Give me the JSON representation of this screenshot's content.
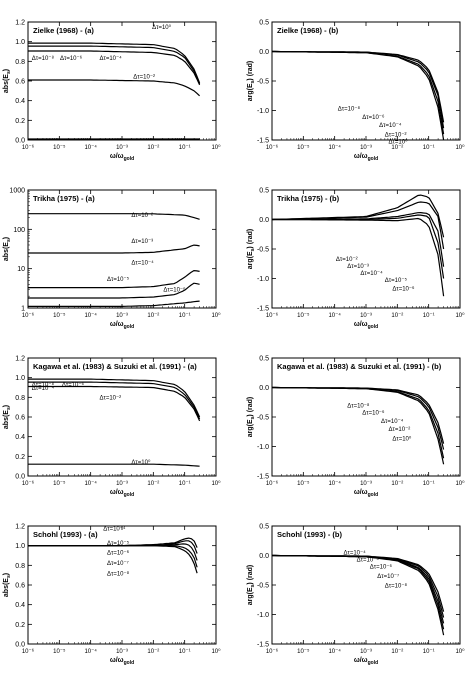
{
  "figure": {
    "xlabel": "ω/ω",
    "xlabel_sub": "gold",
    "ylabel_abs": "abs(E",
    "ylabel_abs_sub": "s",
    "ylabel_abs_close": ")",
    "ylabel_arg": "arg(E",
    "ylabel_arg_sub": "s",
    "ylabel_arg_close": ") (rad)"
  },
  "chart_data": [
    {
      "id": "zielke-a",
      "type": "line",
      "title": "Zielke (1968) - (a)",
      "xscale": "log",
      "xlim": [
        1e-06,
        1.0
      ],
      "ylim": [
        0.0,
        1.2
      ],
      "yticks": [
        0.0,
        0.2,
        0.4,
        0.6,
        0.8,
        1.0,
        1.2
      ],
      "series": [
        {
          "x": [
            1e-06,
            0.0001,
            0.01,
            0.05,
            0.1,
            0.2,
            0.3
          ],
          "y": [
            0.985,
            0.985,
            0.97,
            0.93,
            0.86,
            0.72,
            0.58
          ]
        },
        {
          "x": [
            1e-06,
            0.0001,
            0.01,
            0.05,
            0.1,
            0.2,
            0.3
          ],
          "y": [
            0.955,
            0.955,
            0.94,
            0.9,
            0.84,
            0.7,
            0.57
          ]
        },
        {
          "x": [
            1e-06,
            0.0001,
            0.01,
            0.05,
            0.1,
            0.2,
            0.3
          ],
          "y": [
            0.905,
            0.905,
            0.89,
            0.86,
            0.8,
            0.68,
            0.56
          ]
        },
        {
          "x": [
            1e-06,
            0.0001,
            0.01,
            0.05,
            0.1,
            0.2,
            0.3
          ],
          "y": [
            0.61,
            0.61,
            0.6,
            0.58,
            0.55,
            0.5,
            0.45
          ]
        },
        {
          "x": [
            1e-06,
            0.01,
            0.3
          ],
          "y": [
            0.01,
            0.01,
            0.01
          ]
        }
      ],
      "annotations": [
        "Δτ=10⁻⁸",
        "Δτ=10⁻⁶",
        "Δτ=10⁻⁴",
        "Δτ=10⁻²",
        "Δτ=10⁰"
      ]
    },
    {
      "id": "zielke-b",
      "type": "line",
      "title": "Zielke (1968) - (b)",
      "xscale": "log",
      "xlim": [
        1e-06,
        1.0
      ],
      "ylim": [
        -1.5,
        0.5
      ],
      "yticks": [
        -1.5,
        -1.0,
        -0.5,
        0.0,
        0.5
      ],
      "series": [
        {
          "x": [
            1e-06,
            0.001,
            0.01,
            0.05,
            0.1,
            0.2,
            0.3
          ],
          "y": [
            0,
            -0.01,
            -0.05,
            -0.15,
            -0.3,
            -0.7,
            -1.2
          ]
        },
        {
          "x": [
            1e-06,
            0.001,
            0.01,
            0.05,
            0.1,
            0.2,
            0.3
          ],
          "y": [
            0,
            -0.01,
            -0.06,
            -0.18,
            -0.34,
            -0.75,
            -1.3
          ]
        },
        {
          "x": [
            1e-06,
            0.001,
            0.01,
            0.05,
            0.1,
            0.2,
            0.3
          ],
          "y": [
            0,
            -0.02,
            -0.08,
            -0.22,
            -0.4,
            -0.85,
            -1.4
          ]
        },
        {
          "x": [
            1e-06,
            0.001,
            0.01,
            0.05,
            0.1,
            0.2,
            0.3
          ],
          "y": [
            0,
            -0.02,
            -0.09,
            -0.25,
            -0.45,
            -0.95,
            -1.5
          ]
        }
      ],
      "annotations": [
        "Δτ=10⁻⁸",
        "Δτ=10⁻⁶",
        "Δτ=10⁻⁴",
        "Δτ=10⁻²",
        "Δτ=10⁰"
      ]
    },
    {
      "id": "trikha-a",
      "type": "line",
      "title": "Trikha (1975) - (a)",
      "xscale": "log",
      "yscale": "log",
      "xlim": [
        1e-06,
        1.0
      ],
      "ylim": [
        1,
        1000
      ],
      "yticks": [
        1,
        10,
        100,
        1000
      ],
      "series": [
        {
          "x": [
            1e-06,
            0.001,
            0.01,
            0.1,
            0.3
          ],
          "y": [
            250,
            250,
            248,
            230,
            180
          ]
        },
        {
          "x": [
            1e-06,
            0.001,
            0.01,
            0.1,
            0.2,
            0.3
          ],
          "y": [
            25,
            25,
            26,
            32,
            40,
            38
          ]
        },
        {
          "x": [
            1e-06,
            0.001,
            0.01,
            0.05,
            0.1,
            0.2,
            0.3
          ],
          "y": [
            3.3,
            3.3,
            3.5,
            4.2,
            6,
            9,
            8.5
          ]
        },
        {
          "x": [
            1e-06,
            0.001,
            0.01,
            0.05,
            0.1,
            0.2,
            0.3
          ],
          "y": [
            1.8,
            1.8,
            1.9,
            2.2,
            2.8,
            4.3,
            4.0
          ]
        },
        {
          "x": [
            1e-06,
            0.001,
            0.01,
            0.1,
            0.3
          ],
          "y": [
            1.1,
            1.1,
            1.15,
            1.35,
            1.5
          ]
        }
      ],
      "annotations": [
        "Δτ=10⁻²",
        "Δτ=10⁻³",
        "Δτ=10⁻⁴",
        "Δτ=10⁻⁵",
        "Δτ=10⁻⁶"
      ]
    },
    {
      "id": "trikha-b",
      "type": "line",
      "title": "Trikha (1975) - (b)",
      "xscale": "log",
      "xlim": [
        1e-06,
        1.0
      ],
      "ylim": [
        -1.5,
        0.5
      ],
      "yticks": [
        -1.5,
        -1.0,
        -0.5,
        0.0,
        0.5
      ],
      "series": [
        {
          "x": [
            1e-06,
            0.001,
            0.01,
            0.03,
            0.05,
            0.1,
            0.2,
            0.3
          ],
          "y": [
            0,
            0.05,
            0.2,
            0.35,
            0.42,
            0.38,
            0.1,
            -0.3
          ]
        },
        {
          "x": [
            1e-06,
            0.001,
            0.01,
            0.03,
            0.05,
            0.1,
            0.2,
            0.3
          ],
          "y": [
            0,
            0.04,
            0.15,
            0.25,
            0.3,
            0.28,
            0.05,
            -0.5
          ]
        },
        {
          "x": [
            1e-06,
            0.001,
            0.01,
            0.05,
            0.1,
            0.2,
            0.3
          ],
          "y": [
            0,
            0.01,
            0.05,
            0.12,
            0.1,
            -0.2,
            -0.8
          ]
        },
        {
          "x": [
            1e-06,
            0.001,
            0.01,
            0.05,
            0.1,
            0.2,
            0.3
          ],
          "y": [
            0,
            0.0,
            0.02,
            0.08,
            0.05,
            -0.4,
            -1.0
          ]
        },
        {
          "x": [
            1e-06,
            0.001,
            0.01,
            0.05,
            0.1,
            0.2,
            0.3
          ],
          "y": [
            0,
            -0.01,
            -0.02,
            0.02,
            -0.1,
            -0.6,
            -1.3
          ]
        }
      ],
      "annotations": [
        "Δτ=10⁻²",
        "Δτ=10⁻³",
        "Δτ=10⁻⁴",
        "Δτ=10⁻⁵",
        "Δτ=10⁻⁶"
      ]
    },
    {
      "id": "kagawa-a",
      "type": "line",
      "title": "Kagawa et al. (1983) & Suzuki et al. (1991) - (a)",
      "xscale": "log",
      "xlim": [
        1e-06,
        1.0
      ],
      "ylim": [
        0.0,
        1.2
      ],
      "yticks": [
        0.0,
        0.2,
        0.4,
        0.6,
        0.8,
        1.0,
        1.2
      ],
      "series": [
        {
          "x": [
            1e-06,
            0.0001,
            0.01,
            0.05,
            0.1,
            0.2,
            0.3
          ],
          "y": [
            0.985,
            0.985,
            0.97,
            0.93,
            0.86,
            0.72,
            0.6
          ]
        },
        {
          "x": [
            1e-06,
            0.0001,
            0.01,
            0.05,
            0.1,
            0.2,
            0.3
          ],
          "y": [
            0.955,
            0.955,
            0.94,
            0.9,
            0.83,
            0.7,
            0.58
          ]
        },
        {
          "x": [
            1e-06,
            0.0001,
            0.01,
            0.05,
            0.1,
            0.2,
            0.3
          ],
          "y": [
            0.91,
            0.91,
            0.9,
            0.86,
            0.8,
            0.68,
            0.56
          ]
        },
        {
          "x": [
            1e-06,
            0.01,
            0.1,
            0.3
          ],
          "y": [
            0.12,
            0.12,
            0.11,
            0.1
          ]
        }
      ],
      "annotations": [
        "Δτ=10⁻⁸",
        "Δτ=10⁻⁶",
        "Δτ=10⁻⁴",
        "Δτ=10⁻²",
        "Δτ=10⁰"
      ]
    },
    {
      "id": "kagawa-b",
      "type": "line",
      "title": "Kagawa et al. (1983) & Suzuki et al. (1991) - (b)",
      "xscale": "log",
      "xlim": [
        1e-06,
        1.0
      ],
      "ylim": [
        -1.5,
        0.5
      ],
      "yticks": [
        -1.5,
        -1.0,
        -0.5,
        0.0,
        0.5
      ],
      "series": [
        {
          "x": [
            1e-06,
            0.001,
            0.01,
            0.05,
            0.1,
            0.2,
            0.3
          ],
          "y": [
            0,
            -0.01,
            -0.04,
            -0.13,
            -0.28,
            -0.6,
            -0.95
          ]
        },
        {
          "x": [
            1e-06,
            0.001,
            0.01,
            0.05,
            0.1,
            0.2,
            0.3
          ],
          "y": [
            0,
            -0.01,
            -0.05,
            -0.16,
            -0.32,
            -0.68,
            -1.05
          ]
        },
        {
          "x": [
            1e-06,
            0.001,
            0.01,
            0.05,
            0.1,
            0.2,
            0.3
          ],
          "y": [
            0,
            -0.02,
            -0.07,
            -0.2,
            -0.38,
            -0.78,
            -1.2
          ]
        },
        {
          "x": [
            1e-06,
            0.001,
            0.01,
            0.05,
            0.1,
            0.2,
            0.3
          ],
          "y": [
            0,
            -0.02,
            -0.08,
            -0.23,
            -0.42,
            -0.88,
            -1.3
          ]
        }
      ],
      "annotations": [
        "Δτ=10⁻⁸",
        "Δτ=10⁻⁶",
        "Δτ=10⁻⁴",
        "Δτ=10⁻²",
        "Δτ=10⁰"
      ]
    },
    {
      "id": "schohl-a",
      "type": "line",
      "title": "Schohl (1993) - (a)",
      "xscale": "log",
      "xlim": [
        1e-06,
        1.0
      ],
      "ylim": [
        0.0,
        1.2
      ],
      "yticks": [
        0.0,
        0.2,
        0.4,
        0.6,
        0.8,
        1.0,
        1.2
      ],
      "series": [
        {
          "x": [
            1e-06,
            0.001,
            0.01,
            0.05,
            0.1,
            0.15,
            0.2,
            0.25
          ],
          "y": [
            1.0,
            1.0,
            1.01,
            1.03,
            1.07,
            1.08,
            1.05,
            0.98
          ]
        },
        {
          "x": [
            1e-06,
            0.001,
            0.01,
            0.05,
            0.1,
            0.15,
            0.2,
            0.25
          ],
          "y": [
            1.0,
            1.0,
            1.01,
            1.02,
            1.05,
            1.05,
            1.0,
            0.92
          ]
        },
        {
          "x": [
            1e-06,
            0.001,
            0.01,
            0.05,
            0.1,
            0.15,
            0.2,
            0.25
          ],
          "y": [
            1.0,
            1.0,
            1.0,
            1.01,
            1.02,
            1.0,
            0.94,
            0.85
          ]
        },
        {
          "x": [
            1e-06,
            0.001,
            0.01,
            0.05,
            0.1,
            0.15,
            0.2,
            0.25
          ],
          "y": [
            1.0,
            1.0,
            1.0,
            1.0,
            0.98,
            0.94,
            0.88,
            0.78
          ]
        },
        {
          "x": [
            1e-06,
            0.001,
            0.01,
            0.05,
            0.1,
            0.15,
            0.2,
            0.25
          ],
          "y": [
            1.0,
            1.0,
            1.0,
            0.99,
            0.95,
            0.9,
            0.82,
            0.72
          ]
        }
      ],
      "annotations": [
        "Δτ=10⁻⁴",
        "Δτ=10⁻⁵",
        "Δτ=10⁻⁶",
        "Δτ=10⁻⁷",
        "Δτ=10⁻⁸"
      ]
    },
    {
      "id": "schohl-b",
      "type": "line",
      "title": "Schohl (1993) - (b)",
      "xscale": "log",
      "xlim": [
        1e-06,
        1.0
      ],
      "ylim": [
        -1.5,
        0.5
      ],
      "yticks": [
        -1.5,
        -1.0,
        -0.5,
        0.0,
        0.5
      ],
      "series": [
        {
          "x": [
            1e-06,
            0.001,
            0.01,
            0.05,
            0.1,
            0.2,
            0.3
          ],
          "y": [
            0,
            -0.01,
            -0.05,
            -0.16,
            -0.3,
            -0.62,
            -0.95
          ]
        },
        {
          "x": [
            1e-06,
            0.001,
            0.01,
            0.05,
            0.1,
            0.2,
            0.3
          ],
          "y": [
            0,
            -0.01,
            -0.06,
            -0.18,
            -0.34,
            -0.7,
            -1.05
          ]
        },
        {
          "x": [
            1e-06,
            0.001,
            0.01,
            0.05,
            0.1,
            0.2,
            0.3
          ],
          "y": [
            0,
            -0.02,
            -0.07,
            -0.21,
            -0.38,
            -0.78,
            -1.15
          ]
        },
        {
          "x": [
            1e-06,
            0.001,
            0.01,
            0.05,
            0.1,
            0.2,
            0.3
          ],
          "y": [
            0,
            -0.02,
            -0.08,
            -0.23,
            -0.42,
            -0.85,
            -1.25
          ]
        },
        {
          "x": [
            1e-06,
            0.001,
            0.01,
            0.05,
            0.1,
            0.2,
            0.3
          ],
          "y": [
            0,
            -0.02,
            -0.09,
            -0.26,
            -0.46,
            -0.92,
            -1.35
          ]
        }
      ],
      "annotations": [
        "Δτ=10⁻⁴",
        "Δτ=10⁻⁵",
        "Δτ=10⁻⁶",
        "Δτ=10⁻⁷",
        "Δτ=10⁻⁸"
      ]
    }
  ]
}
